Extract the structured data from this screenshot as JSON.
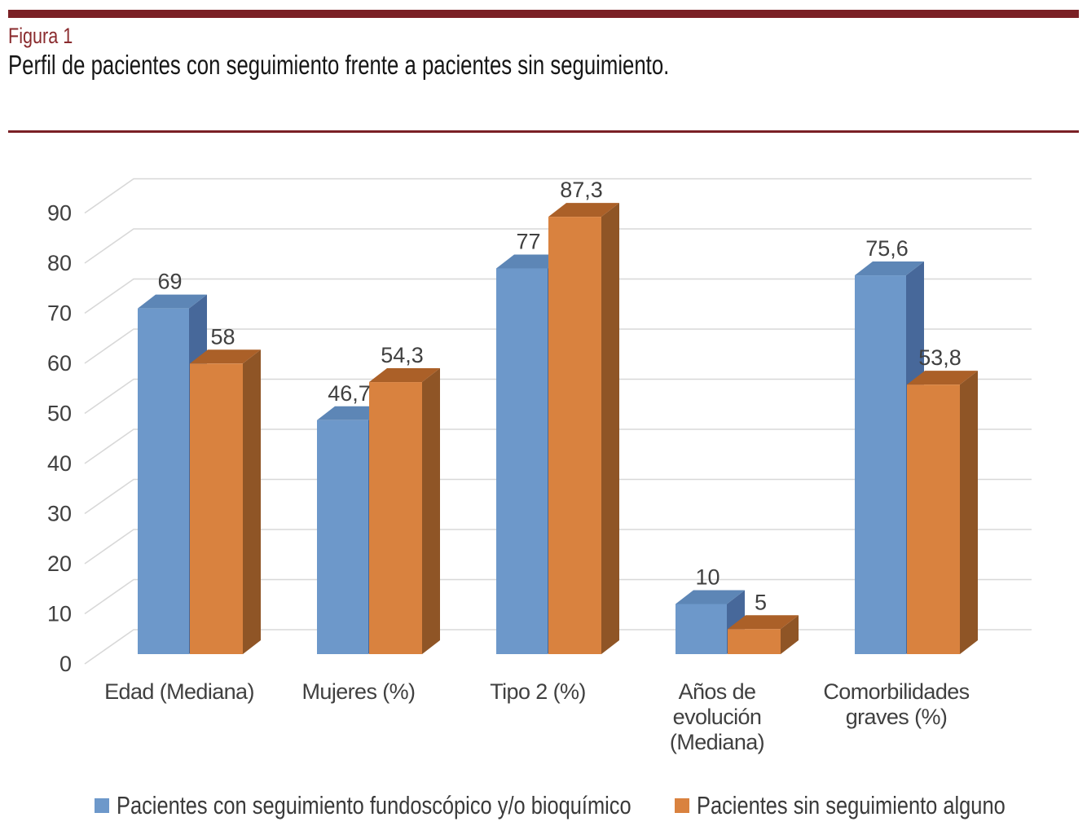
{
  "figure": {
    "label": "Figura 1",
    "title": "Perfil de pacientes con seguimiento frente a pacientes sin seguimiento."
  },
  "chart_data": {
    "type": "bar",
    "style": "3d-clustered-column",
    "title": "Perfil de pacientes con seguimiento frente a pacientes sin seguimiento.",
    "xlabel": "",
    "ylabel": "",
    "categories": [
      "Edad (Mediana)",
      "Mujeres (%)",
      "Tipo 2 (%)",
      "Años de evolución (Mediana)",
      "Comorbilidades graves (%)"
    ],
    "category_lines": [
      [
        "Edad (Mediana)"
      ],
      [
        "Mujeres (%)"
      ],
      [
        "Tipo 2 (%)"
      ],
      [
        "Años de",
        "evolución",
        "(Mediana)"
      ],
      [
        "Comorbilidades",
        "graves (%)"
      ]
    ],
    "series": [
      {
        "name": "Pacientes con seguimiento fundoscópico y/o bioquímico",
        "values": [
          69,
          46.7,
          77,
          10,
          75.6
        ],
        "labels": [
          "69",
          "46,7",
          "77",
          "10",
          "75,6"
        ],
        "color": "#6d98ca",
        "top_color": "#5d86b6",
        "side_color": "#47689a"
      },
      {
        "name": "Pacientes sin seguimiento alguno",
        "values": [
          58,
          54.3,
          87.3,
          5,
          53.8
        ],
        "labels": [
          "58",
          "54,3",
          "87,3",
          "5",
          "53,8"
        ],
        "color": "#d9823f",
        "top_color": "#ab6028",
        "side_color": "#8f5526"
      }
    ],
    "y_axis": {
      "min": 0,
      "max": 90,
      "step": 10,
      "tick_labels": [
        "0",
        "10",
        "20",
        "30",
        "40",
        "50",
        "60",
        "70",
        "80",
        "90"
      ]
    },
    "ylim": [
      0,
      90
    ],
    "grid": true,
    "legend_position": "bottom",
    "decimal_separator": ","
  },
  "colors": {
    "top_rule": "#7a2025",
    "figure_label_text": "#8a2b2e",
    "divider": "#7a2025",
    "title_text": "#161616",
    "chart_text": "#404040",
    "legend_text": "#3a3a3a",
    "gridline": "#d8d8d8",
    "background": "#ffffff"
  }
}
